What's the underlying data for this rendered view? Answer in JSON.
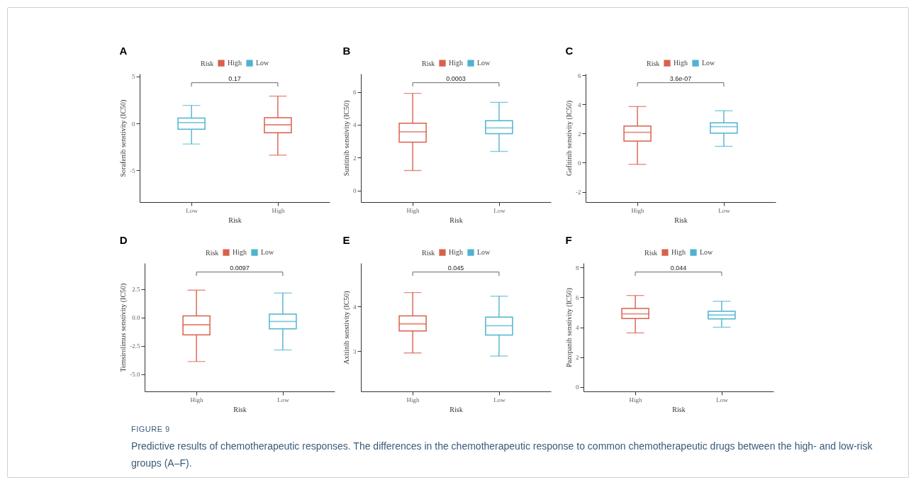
{
  "chart_data": [
    {
      "type": "box",
      "title": "A",
      "xlabel": "Risk",
      "ylabel": "Sorafenib senstivity (IC50)",
      "legend_title": "Risk",
      "legend": "top",
      "categories": [
        "Low",
        "High"
      ],
      "ylim": [
        -8.4,
        5.3
      ],
      "yticks": [
        -5,
        0,
        5
      ],
      "annotations": [
        "0.17"
      ],
      "series": [
        {
          "name": "High",
          "color": "#d9604d",
          "boxes": [
            null,
            {
              "low": -3.39,
              "q1": -1.01,
              "median": -0.15,
              "q3": 0.61,
              "high": 2.91
            }
          ]
        },
        {
          "name": "Low",
          "color": "#4eb3cf",
          "boxes": [
            {
              "low": -2.2,
              "q1": -0.63,
              "median": 0.08,
              "q3": 0.56,
              "high": 1.92
            },
            null
          ]
        }
      ]
    },
    {
      "type": "box",
      "title": "B",
      "xlabel": "Risk",
      "ylabel": "Sunitinib senstivity (IC50)",
      "legend_title": "Risk",
      "legend": "top",
      "categories": [
        "High",
        "Low"
      ],
      "ylim": [
        -0.7,
        7.1
      ],
      "yticks": [
        0,
        2,
        4,
        6
      ],
      "annotations": [
        "0.0003"
      ],
      "series": [
        {
          "name": "High",
          "color": "#d9604d",
          "boxes": [
            {
              "low": 1.22,
              "q1": 2.94,
              "median": 3.57,
              "q3": 4.09,
              "high": 5.91
            },
            null
          ]
        },
        {
          "name": "Low",
          "color": "#4eb3cf",
          "boxes": [
            null,
            {
              "low": 2.38,
              "q1": 3.46,
              "median": 3.81,
              "q3": 4.25,
              "high": 5.36
            }
          ]
        }
      ]
    },
    {
      "type": "box",
      "title": "C",
      "xlabel": "Risk",
      "ylabel": "Gefitinib senstivity (IC50)",
      "legend_title": "Risk",
      "legend": "top",
      "categories": [
        "High",
        "Low"
      ],
      "ylim": [
        -2.7,
        6.1
      ],
      "yticks": [
        -2,
        0,
        2,
        4,
        6
      ],
      "annotations": [
        "3.6e-07"
      ],
      "series": [
        {
          "name": "High",
          "color": "#d9604d",
          "boxes": [
            {
              "low": -0.11,
              "q1": 1.48,
              "median": 2.08,
              "q3": 2.52,
              "high": 3.85
            },
            null
          ]
        },
        {
          "name": "Low",
          "color": "#4eb3cf",
          "boxes": [
            null,
            {
              "low": 1.12,
              "q1": 2.03,
              "median": 2.47,
              "q3": 2.73,
              "high": 3.56
            }
          ]
        }
      ]
    },
    {
      "type": "box",
      "title": "D",
      "xlabel": "Risk",
      "ylabel": "Temsirolimus senstivity (IC50)",
      "legend_title": "Risk",
      "legend": "top",
      "categories": [
        "High",
        "Low"
      ],
      "ylim": [
        -6.5,
        4.8
      ],
      "yticks": [
        {
          "value": -5,
          "label": "-5.0"
        },
        {
          "value": -2.5,
          "label": "-2.5"
        },
        {
          "value": 0,
          "label": "0.0"
        },
        {
          "value": 2.5,
          "label": "2.5"
        }
      ],
      "annotations": [
        "0.0097"
      ],
      "series": [
        {
          "name": "High",
          "color": "#d9604d",
          "boxes": [
            {
              "low": -3.87,
              "q1": -1.52,
              "median": -0.63,
              "q3": 0.15,
              "high": 2.41
            },
            null
          ]
        },
        {
          "name": "Low",
          "color": "#4eb3cf",
          "boxes": [
            null,
            {
              "low": -2.85,
              "q1": -0.99,
              "median": -0.34,
              "q3": 0.3,
              "high": 2.16
            }
          ]
        }
      ]
    },
    {
      "type": "box",
      "title": "E",
      "xlabel": "Risk",
      "ylabel": "Axitinib senstivity (IC50)",
      "legend_title": "Risk",
      "legend": "top",
      "categories": [
        "High",
        "Low"
      ],
      "ylim": [
        2.1,
        4.97
      ],
      "yticks": [
        3,
        4
      ],
      "annotations": [
        "0.045"
      ],
      "series": [
        {
          "name": "High",
          "color": "#d9604d",
          "boxes": [
            {
              "low": 2.96,
              "q1": 3.45,
              "median": 3.61,
              "q3": 3.79,
              "high": 4.31
            },
            null
          ]
        },
        {
          "name": "Low",
          "color": "#4eb3cf",
          "boxes": [
            null,
            {
              "low": 2.89,
              "q1": 3.36,
              "median": 3.57,
              "q3": 3.76,
              "high": 4.23
            }
          ]
        }
      ]
    },
    {
      "type": "box",
      "title": "F",
      "xlabel": "Risk",
      "ylabel": "Pazopanib senstivity (IC50)",
      "legend_title": "Risk",
      "legend": "top",
      "categories": [
        "High",
        "Low"
      ],
      "ylim": [
        -0.3,
        8.3
      ],
      "yticks": [
        0,
        2,
        4,
        6,
        8
      ],
      "annotations": [
        "0.044",
        "FIGURE 9",
        "Predictive results of chemotherapeutic responses. The differences in the chemotherapeutic response to common chemotherapeutic drugs between the high- and low-risk groups (A–F)."
      ],
      "series": [
        {
          "name": "High",
          "color": "#d9604d",
          "boxes": [
            {
              "low": 3.62,
              "q1": 4.58,
              "median": 4.9,
              "q3": 5.26,
              "high": 6.13
            },
            null
          ]
        },
        {
          "name": "Low",
          "color": "#4eb3cf",
          "boxes": [
            null,
            {
              "low": 4.0,
              "q1": 4.56,
              "median": 4.82,
              "q3": 5.07,
              "high": 5.74
            }
          ]
        }
      ]
    }
  ]
}
